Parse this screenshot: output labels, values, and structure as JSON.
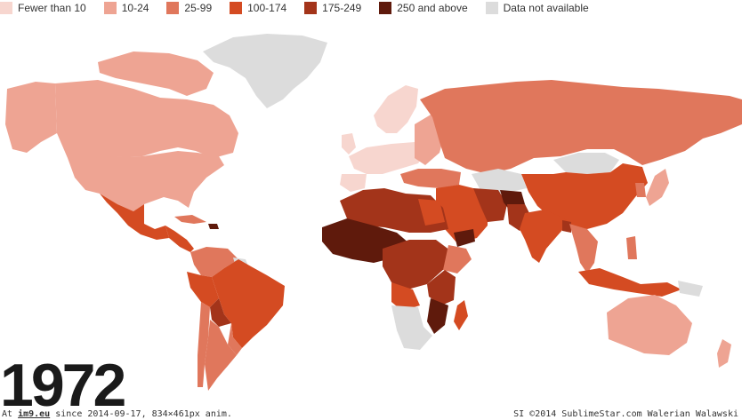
{
  "legend": [
    {
      "label": "Fewer than 10",
      "color": "#f7d6cf"
    },
    {
      "label": "10-24",
      "color": "#eea493"
    },
    {
      "label": "25-99",
      "color": "#e0775c"
    },
    {
      "label": "100-174",
      "color": "#d44b22"
    },
    {
      "label": "175-249",
      "color": "#a3341a"
    },
    {
      "label": "250 and above",
      "color": "#5f1a0c"
    },
    {
      "label": "Data not available",
      "color": "#dcdcdc"
    }
  ],
  "year": "1972",
  "footer": {
    "left_prefix": "At",
    "left_site": "im9.eu",
    "left_suffix": "since 2014-09-17, 834×461px anim.",
    "right": "SI ©2014 SublimeStar.com Walerian Walawski"
  }
}
